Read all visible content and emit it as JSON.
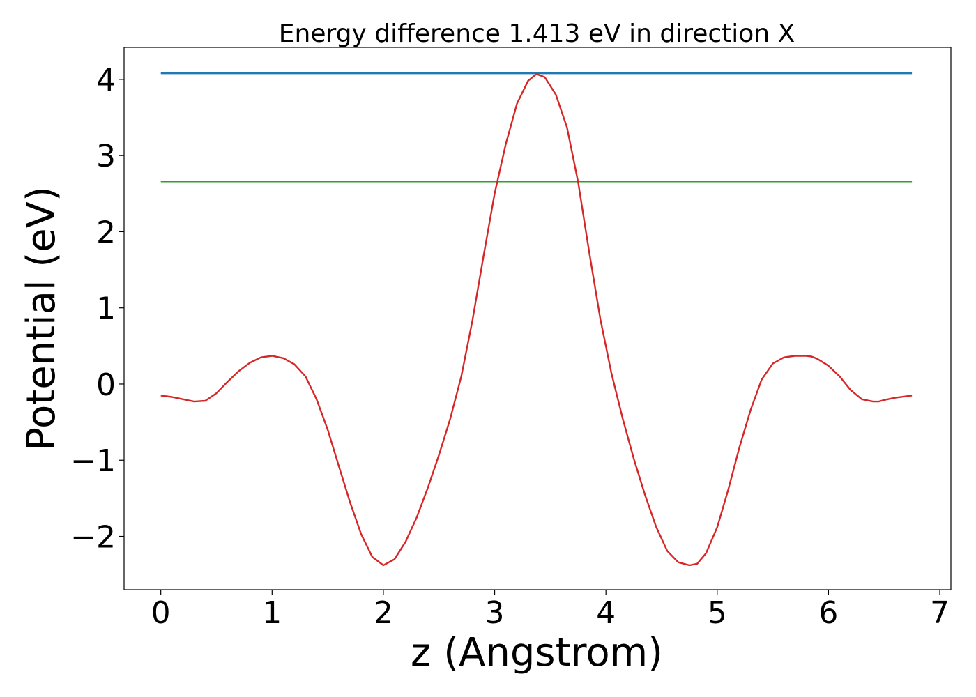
{
  "chart_data": {
    "type": "line",
    "title": "Energy difference 1.413 eV in direction X",
    "xlabel": "z (Angstrom)",
    "ylabel": "Potential (eV)",
    "xlim": [
      -0.33,
      7.1
    ],
    "ylim": [
      -2.7,
      4.42
    ],
    "xticks": [
      0,
      1,
      2,
      3,
      4,
      5,
      6,
      7
    ],
    "yticks": [
      -2,
      -1,
      0,
      1,
      2,
      3,
      4
    ],
    "grid": false,
    "series": [
      {
        "color": "#1f77b4",
        "x": [
          0,
          6.75
        ],
        "y": [
          4.08,
          4.08
        ]
      },
      {
        "color": "#2ca02c",
        "x": [
          0,
          6.75
        ],
        "y": [
          2.66,
          2.66
        ]
      },
      {
        "color": "#d62728",
        "x": [
          0,
          0.1,
          0.2,
          0.3,
          0.4,
          0.5,
          0.6,
          0.7,
          0.8,
          0.9,
          1.0,
          1.1,
          1.2,
          1.3,
          1.4,
          1.5,
          1.6,
          1.7,
          1.8,
          1.9,
          2.0,
          2.1,
          2.2,
          2.3,
          2.4,
          2.5,
          2.6,
          2.7,
          2.8,
          2.9,
          3.0,
          3.1,
          3.2,
          3.3,
          3.375,
          3.45,
          3.55,
          3.65,
          3.75,
          3.85,
          3.95,
          4.05,
          4.15,
          4.25,
          4.35,
          4.45,
          4.55,
          4.65,
          4.75,
          4.82,
          4.9,
          5.0,
          5.1,
          5.2,
          5.3,
          5.4,
          5.5,
          5.6,
          5.7,
          5.8,
          5.85,
          5.9,
          6.0,
          6.1,
          6.2,
          6.3,
          6.4,
          6.45,
          6.5,
          6.6,
          6.75
        ],
        "y": [
          -0.15,
          -0.17,
          -0.2,
          -0.23,
          -0.22,
          -0.12,
          0.03,
          0.17,
          0.28,
          0.35,
          0.37,
          0.34,
          0.26,
          0.1,
          -0.2,
          -0.6,
          -1.08,
          -1.55,
          -1.97,
          -2.27,
          -2.38,
          -2.3,
          -2.07,
          -1.75,
          -1.36,
          -0.93,
          -0.46,
          0.1,
          0.83,
          1.68,
          2.5,
          3.15,
          3.68,
          3.98,
          4.07,
          4.03,
          3.8,
          3.37,
          2.65,
          1.73,
          0.85,
          0.14,
          -0.45,
          -0.98,
          -1.45,
          -1.87,
          -2.19,
          -2.34,
          -2.38,
          -2.36,
          -2.22,
          -1.88,
          -1.38,
          -0.83,
          -0.34,
          0.06,
          0.27,
          0.35,
          0.37,
          0.37,
          0.36,
          0.33,
          0.24,
          0.1,
          -0.08,
          -0.2,
          -0.23,
          -0.23,
          -0.21,
          -0.18,
          -0.15
        ]
      }
    ]
  }
}
